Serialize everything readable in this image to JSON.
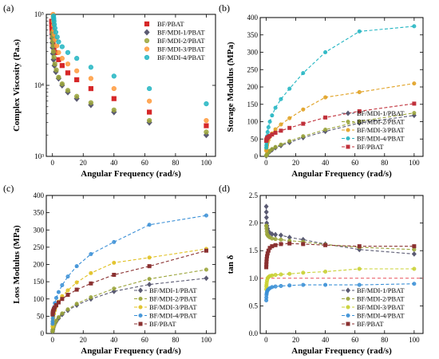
{
  "figure": {
    "panel_letters": [
      "(a)",
      "(b)",
      "(c)",
      "(d)"
    ]
  },
  "chart_data": [
    {
      "panel": "(a)",
      "type": "scatter",
      "xlabel": "Angular Frequency (rad/s)",
      "ylabel": "Complex  Viscosity (Pa.s)",
      "xlim": [
        -4,
        106
      ],
      "ylim": [
        1000,
        100000
      ],
      "y_scale": "log",
      "xticks": [
        "0",
        "20",
        "40",
        "60",
        "80",
        "100"
      ],
      "yticks": [
        "10³",
        "10⁴",
        "10⁵"
      ],
      "legend_position": "top-right",
      "x": [
        0.1,
        0.16,
        0.25,
        0.4,
        0.63,
        1.0,
        1.58,
        2.5,
        4.0,
        6.3,
        10,
        15.8,
        25,
        40,
        63,
        100
      ],
      "series": [
        {
          "name": "BF/PBAT",
          "color": "#d62728",
          "marker": "square",
          "values": [
            80000,
            72000,
            64000,
            56000,
            48000,
            40000,
            34000,
            29000,
            23000,
            19000,
            15000,
            12000,
            9000,
            6500,
            4200,
            2700
          ]
        },
        {
          "name": "BF/MDI-1/PBAT",
          "color": "#5a5a72",
          "marker": "diamond",
          "values": [
            52000,
            46000,
            40000,
            34000,
            28000,
            23000,
            19000,
            15500,
            12500,
            10000,
            8000,
            6500,
            5300,
            4200,
            3000,
            2000
          ]
        },
        {
          "name": "BF/MDI-2/PBAT",
          "color": "#9aa43a",
          "marker": "circle",
          "values": [
            56000,
            49000,
            42000,
            36000,
            30000,
            25000,
            20000,
            16500,
            13000,
            10500,
            8500,
            7000,
            5700,
            4500,
            3200,
            2200
          ]
        },
        {
          "name": "BF/MDI-3/PBAT",
          "color": "#ff9a3c",
          "marker": "circle",
          "values": [
            100000,
            92000,
            80000,
            70000,
            60000,
            52000,
            44000,
            36000,
            29000,
            24000,
            20000,
            16000,
            12500,
            9000,
            6000,
            3200
          ]
        },
        {
          "name": "BF/MDI-4/PBAT",
          "color": "#22b5c2",
          "marker": "circle",
          "values": [
            95000,
            90000,
            86000,
            80000,
            72000,
            64000,
            56000,
            48000,
            41000,
            35000,
            29000,
            24000,
            18000,
            13500,
            9000,
            5500
          ]
        }
      ]
    },
    {
      "panel": "(b)",
      "type": "line",
      "xlabel": "Angular Frequency (rad/s)",
      "ylabel": "Storage Modulus (MPa)",
      "xlim": [
        -4,
        106
      ],
      "ylim": [
        0,
        400
      ],
      "xticks": [
        "0",
        "20",
        "40",
        "60",
        "80",
        "100"
      ],
      "yticks": [
        "0",
        "50",
        "100",
        "150",
        "200",
        "250",
        "300",
        "350",
        "400"
      ],
      "legend_position": "bottom-right",
      "x": [
        0.1,
        0.16,
        0.25,
        0.4,
        0.63,
        1.0,
        1.58,
        2.5,
        4.0,
        6.3,
        10,
        15.8,
        25,
        40,
        63,
        100
      ],
      "series": [
        {
          "name": "BF/MDI-1/PBAT",
          "color": "#5a5a72",
          "marker": "diamond",
          "values": [
            1,
            2,
            3,
            4,
            6,
            8,
            11,
            14,
            19,
            25,
            31,
            40,
            54,
            72,
            96,
            118
          ]
        },
        {
          "name": "BF/MDI-2/PBAT",
          "color": "#9aa43a",
          "marker": "circle",
          "values": [
            2,
            3,
            4,
            5,
            7,
            9,
            12,
            16,
            21,
            27,
            34,
            44,
            58,
            77,
            101,
            125
          ]
        },
        {
          "name": "BF/MDI-3/PBAT",
          "color": "#e0a020",
          "marker": "circle",
          "values": [
            16,
            20,
            24,
            28,
            33,
            40,
            47,
            56,
            66,
            78,
            92,
            110,
            135,
            170,
            185,
            210
          ]
        },
        {
          "name": "BF/MDI-4/PBAT",
          "color": "#22b5c2",
          "marker": "circle",
          "values": [
            25,
            32,
            40,
            48,
            58,
            70,
            84,
            100,
            118,
            140,
            165,
            195,
            240,
            300,
            360,
            375
          ]
        },
        {
          "name": "BF/PBAT",
          "color": "#c0303a",
          "marker": "square",
          "values": [
            45,
            47,
            48,
            50,
            52,
            54,
            56,
            59,
            63,
            68,
            74,
            82,
            94,
            112,
            130,
            152
          ]
        }
      ]
    },
    {
      "panel": "(c)",
      "type": "line",
      "xlabel": "Angular Frequency (rad/s)",
      "ylabel": "Loss Modulus (MPa)",
      "xlim": [
        -4,
        106
      ],
      "ylim": [
        0,
        400
      ],
      "xticks": [
        "0",
        "20",
        "40",
        "60",
        "80",
        "100"
      ],
      "yticks": [
        "0",
        "50",
        "100",
        "150",
        "200",
        "250",
        "300",
        "350",
        "400"
      ],
      "legend_position": "bottom-right",
      "x": [
        0.1,
        0.16,
        0.25,
        0.4,
        0.63,
        1.0,
        1.58,
        2.5,
        4.0,
        6.3,
        10,
        15.8,
        25,
        40,
        63,
        100
      ],
      "series": [
        {
          "name": "BF/MDI-1/PBAT",
          "color": "#5a5a72",
          "marker": "diamond",
          "values": [
            5,
            7,
            10,
            13,
            17,
            22,
            28,
            35,
            44,
            55,
            67,
            82,
            100,
            122,
            142,
            160
          ]
        },
        {
          "name": "BF/MDI-2/PBAT",
          "color": "#9aa43a",
          "marker": "circle",
          "values": [
            6,
            8,
            11,
            14,
            18,
            23,
            29,
            37,
            47,
            58,
            70,
            86,
            105,
            130,
            158,
            185
          ]
        },
        {
          "name": "BF/MDI-3/PBAT",
          "color": "#e0c020",
          "marker": "circle",
          "values": [
            20,
            26,
            33,
            40,
            48,
            57,
            67,
            79,
            92,
            108,
            125,
            148,
            175,
            205,
            220,
            245
          ]
        },
        {
          "name": "BF/MDI-4/PBAT",
          "color": "#3a8fd6",
          "marker": "circle",
          "values": [
            28,
            35,
            44,
            53,
            63,
            75,
            88,
            103,
            120,
            140,
            165,
            195,
            230,
            265,
            315,
            342
          ]
        },
        {
          "name": "BF/PBAT",
          "color": "#8a3030",
          "marker": "square",
          "values": [
            55,
            58,
            61,
            64,
            67,
            71,
            76,
            82,
            90,
            100,
            112,
            127,
            145,
            170,
            195,
            240
          ]
        }
      ]
    },
    {
      "panel": "(d)",
      "type": "line",
      "xlabel": "Angular Frequency (rad/s)",
      "ylabel": "tan δ",
      "xlim": [
        -4,
        106
      ],
      "ylim": [
        0.0,
        2.5
      ],
      "xticks": [
        "0",
        "20",
        "40",
        "60",
        "80",
        "100"
      ],
      "yticks": [
        "0.0",
        "0.5",
        "1.0",
        "1.5",
        "2.0",
        "2.5"
      ],
      "legend_position": "bottom-right",
      "reference_line": {
        "y": 1.0,
        "color": "#e8505a"
      },
      "x": [
        0.1,
        0.16,
        0.25,
        0.4,
        0.63,
        1.0,
        1.58,
        2.5,
        4.0,
        6.3,
        10,
        15.8,
        25,
        40,
        63,
        100
      ],
      "series": [
        {
          "name": "BF/MDI-1/PBAT",
          "color": "#5a5a72",
          "marker": "diamond",
          "values": [
            2.3,
            2.2,
            2.1,
            2.0,
            1.95,
            1.9,
            1.85,
            1.82,
            1.8,
            1.79,
            1.78,
            1.74,
            1.7,
            1.62,
            1.52,
            1.44
          ]
        },
        {
          "name": "BF/MDI-2/PBAT",
          "color": "#9aa43a",
          "marker": "circle",
          "values": [
            1.95,
            1.95,
            1.9,
            1.85,
            1.8,
            1.78,
            1.76,
            1.74,
            1.72,
            1.71,
            1.7,
            1.68,
            1.66,
            1.61,
            1.56,
            1.52
          ]
        },
        {
          "name": "BF/MDI-3/PBAT",
          "color": "#c8d030",
          "marker": "circle",
          "values": [
            0.8,
            0.85,
            0.88,
            0.92,
            0.96,
            1.0,
            1.02,
            1.04,
            1.05,
            1.06,
            1.07,
            1.08,
            1.1,
            1.12,
            1.17,
            1.17
          ]
        },
        {
          "name": "BF/MDI-4/PBAT",
          "color": "#3a8fd6",
          "marker": "circle",
          "values": [
            0.6,
            0.65,
            0.7,
            0.73,
            0.76,
            0.78,
            0.8,
            0.82,
            0.84,
            0.85,
            0.86,
            0.87,
            0.88,
            0.88,
            0.88,
            0.9
          ]
        },
        {
          "name": "BF/PBAT",
          "color": "#8a3030",
          "marker": "square",
          "values": [
            1.2,
            1.25,
            1.3,
            1.35,
            1.4,
            1.45,
            1.5,
            1.55,
            1.58,
            1.6,
            1.62,
            1.63,
            1.62,
            1.6,
            1.58,
            1.58
          ]
        }
      ]
    }
  ]
}
